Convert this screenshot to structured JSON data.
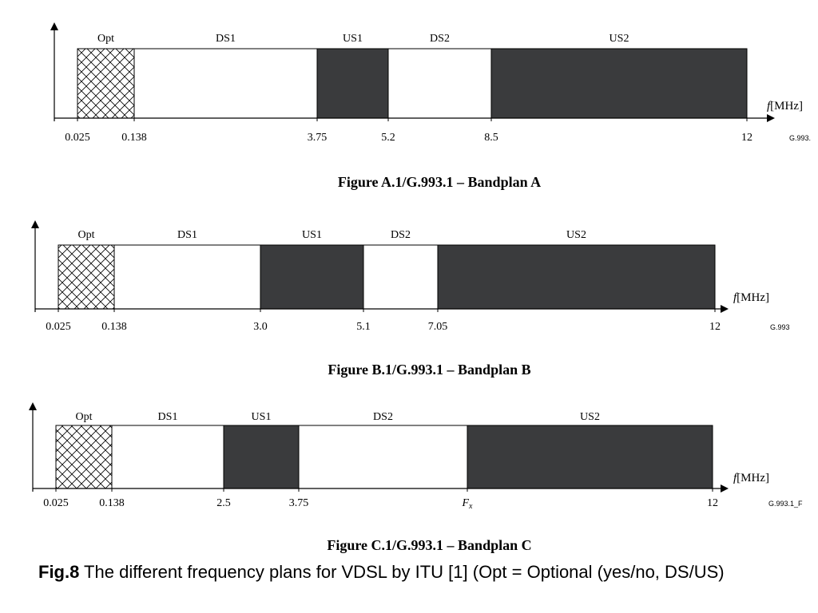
{
  "colors": {
    "dark_band": "#3a3b3d",
    "light_band": "#ffffff",
    "hatch": "#000000"
  },
  "axis_unit": "[MHz]",
  "axis_symbol": "f",
  "plans": [
    {
      "id": "A",
      "title": "Figure A.1/G.993.1 – Bandplan A",
      "code": "G.993.",
      "bands": [
        {
          "name": "Opt",
          "kind": "optional"
        },
        {
          "name": "DS1",
          "kind": "downstream"
        },
        {
          "name": "US1",
          "kind": "upstream"
        },
        {
          "name": "DS2",
          "kind": "downstream"
        },
        {
          "name": "US2",
          "kind": "upstream"
        }
      ],
      "ticks": [
        "0.025",
        "0.138",
        "3.75",
        "5.2",
        "8.5",
        "12"
      ]
    },
    {
      "id": "B",
      "title": "Figure B.1/G.993.1 – Bandplan B",
      "code": "G.993",
      "bands": [
        {
          "name": "Opt",
          "kind": "optional"
        },
        {
          "name": "DS1",
          "kind": "downstream"
        },
        {
          "name": "US1",
          "kind": "upstream"
        },
        {
          "name": "DS2",
          "kind": "downstream"
        },
        {
          "name": "US2",
          "kind": "upstream"
        }
      ],
      "ticks": [
        "0.025",
        "0.138",
        "3.0",
        "5.1",
        "7.05",
        "12"
      ]
    },
    {
      "id": "C",
      "title": "Figure C.1/G.993.1 – Bandplan C",
      "code": "G.993.1_F",
      "bands": [
        {
          "name": "Opt",
          "kind": "optional"
        },
        {
          "name": "DS1",
          "kind": "downstream"
        },
        {
          "name": "US1",
          "kind": "upstream"
        },
        {
          "name": "DS2",
          "kind": "downstream"
        },
        {
          "name": "US2",
          "kind": "upstream"
        }
      ],
      "ticks": [
        "0.025",
        "0.138",
        "2.5",
        "3.75",
        "F",
        "12"
      ],
      "tick_subscripts": [
        "",
        "",
        "",
        "",
        "x",
        ""
      ]
    }
  ],
  "caption": {
    "bold": "Fig.8",
    "text": " The different frequency plans for VDSL by ITU [1] (Opt = Optional (yes/no, DS/US)"
  }
}
